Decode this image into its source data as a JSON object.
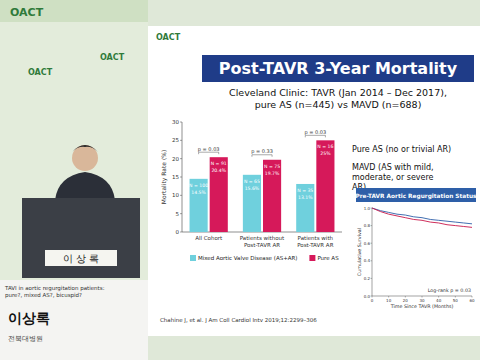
{
  "slide": {
    "logo": "OACT",
    "title": "Post-TAVR 3-Year Mortality",
    "subtitle": [
      "Cleveland Clinic: TAVR (Jan 2014 – Dec 2017),",
      "pure AS (n=445) vs MAVD (n=688)"
    ],
    "definitions": [
      "Pure AS (no or trivial AR)",
      "MAVD (AS with mild, moderate, or severe AR)"
    ],
    "citation": "Chahine J, et al. J Am Coll Cardiol Intv 2019;12:2299–306"
  },
  "speaker": {
    "topic": "TAVI in aortic regurgitation patients: pure?, mixed AS?, bicuspid?",
    "name": "이상록",
    "affiliation": "전북대병원",
    "nameplate": "이 상 록"
  },
  "chart_data": [
    {
      "type": "bar",
      "y_label": "Mortality Rate (%)",
      "categories": [
        "All Cohort",
        "Patients without Post-TAVR AR",
        "Patients with Post-TAVR AR"
      ],
      "series": [
        {
          "name": "Mixed Aortic Valve Disease (AS+AR)",
          "color": "#6fd0dd",
          "values": [
            14.5,
            15.6,
            13.1
          ],
          "value_labels": [
            "14.5%",
            "15.6%",
            "13.1%"
          ],
          "n_labels": [
            "N = 100",
            "N = 65",
            "N = 35"
          ]
        },
        {
          "name": "Pure AS",
          "color": "#d6195a",
          "values": [
            20.4,
            19.7,
            25
          ],
          "value_labels": [
            "20.4%",
            "19.7%",
            "25%"
          ],
          "n_labels": [
            "N = 91",
            "N = 75",
            "N = 16"
          ]
        }
      ],
      "annotations": [
        "p = 0.03",
        "p = 0.33",
        "p = 0.03"
      ],
      "ylim": [
        0,
        30
      ],
      "yticks": [
        0,
        5,
        10,
        15,
        20,
        25,
        30
      ],
      "grid": false,
      "legend": "bottom",
      "data_labels": true
    },
    {
      "type": "line",
      "title": "Pre-TAVR Aortic Regurgitation Status",
      "x_label": "Time Since TAVR (Months)",
      "y_label": "Cumulative Survival",
      "x": [
        0,
        5,
        10,
        15,
        20,
        25,
        30,
        35,
        40,
        45,
        50,
        55,
        60
      ],
      "series": [
        {
          "color": "#2e5fa8",
          "values": [
            1,
            0.97,
            0.95,
            0.93,
            0.92,
            0.9,
            0.89,
            0.87,
            0.86,
            0.85,
            0.84,
            0.83,
            0.82
          ]
        },
        {
          "color": "#c8174a",
          "values": [
            1,
            0.96,
            0.93,
            0.91,
            0.89,
            0.87,
            0.86,
            0.84,
            0.83,
            0.81,
            0.8,
            0.79,
            0.78
          ]
        }
      ],
      "annotations": [
        "Log-rank p = 0.03"
      ],
      "xlim": [
        0,
        60
      ],
      "xticks": [
        0,
        10,
        20,
        30,
        40,
        50,
        60
      ],
      "ylim": [
        0,
        1
      ],
      "yticks": [
        {
          "value": 0,
          "label": "0.0"
        },
        {
          "value": 0.2,
          "label": "0.2"
        },
        {
          "value": 0.4,
          "label": "0.4"
        },
        {
          "value": 0.6,
          "label": "0.6"
        },
        {
          "value": 0.8,
          "label": "0.8"
        },
        {
          "value": 1,
          "label": "1.0"
        }
      ],
      "grid": false
    }
  ]
}
